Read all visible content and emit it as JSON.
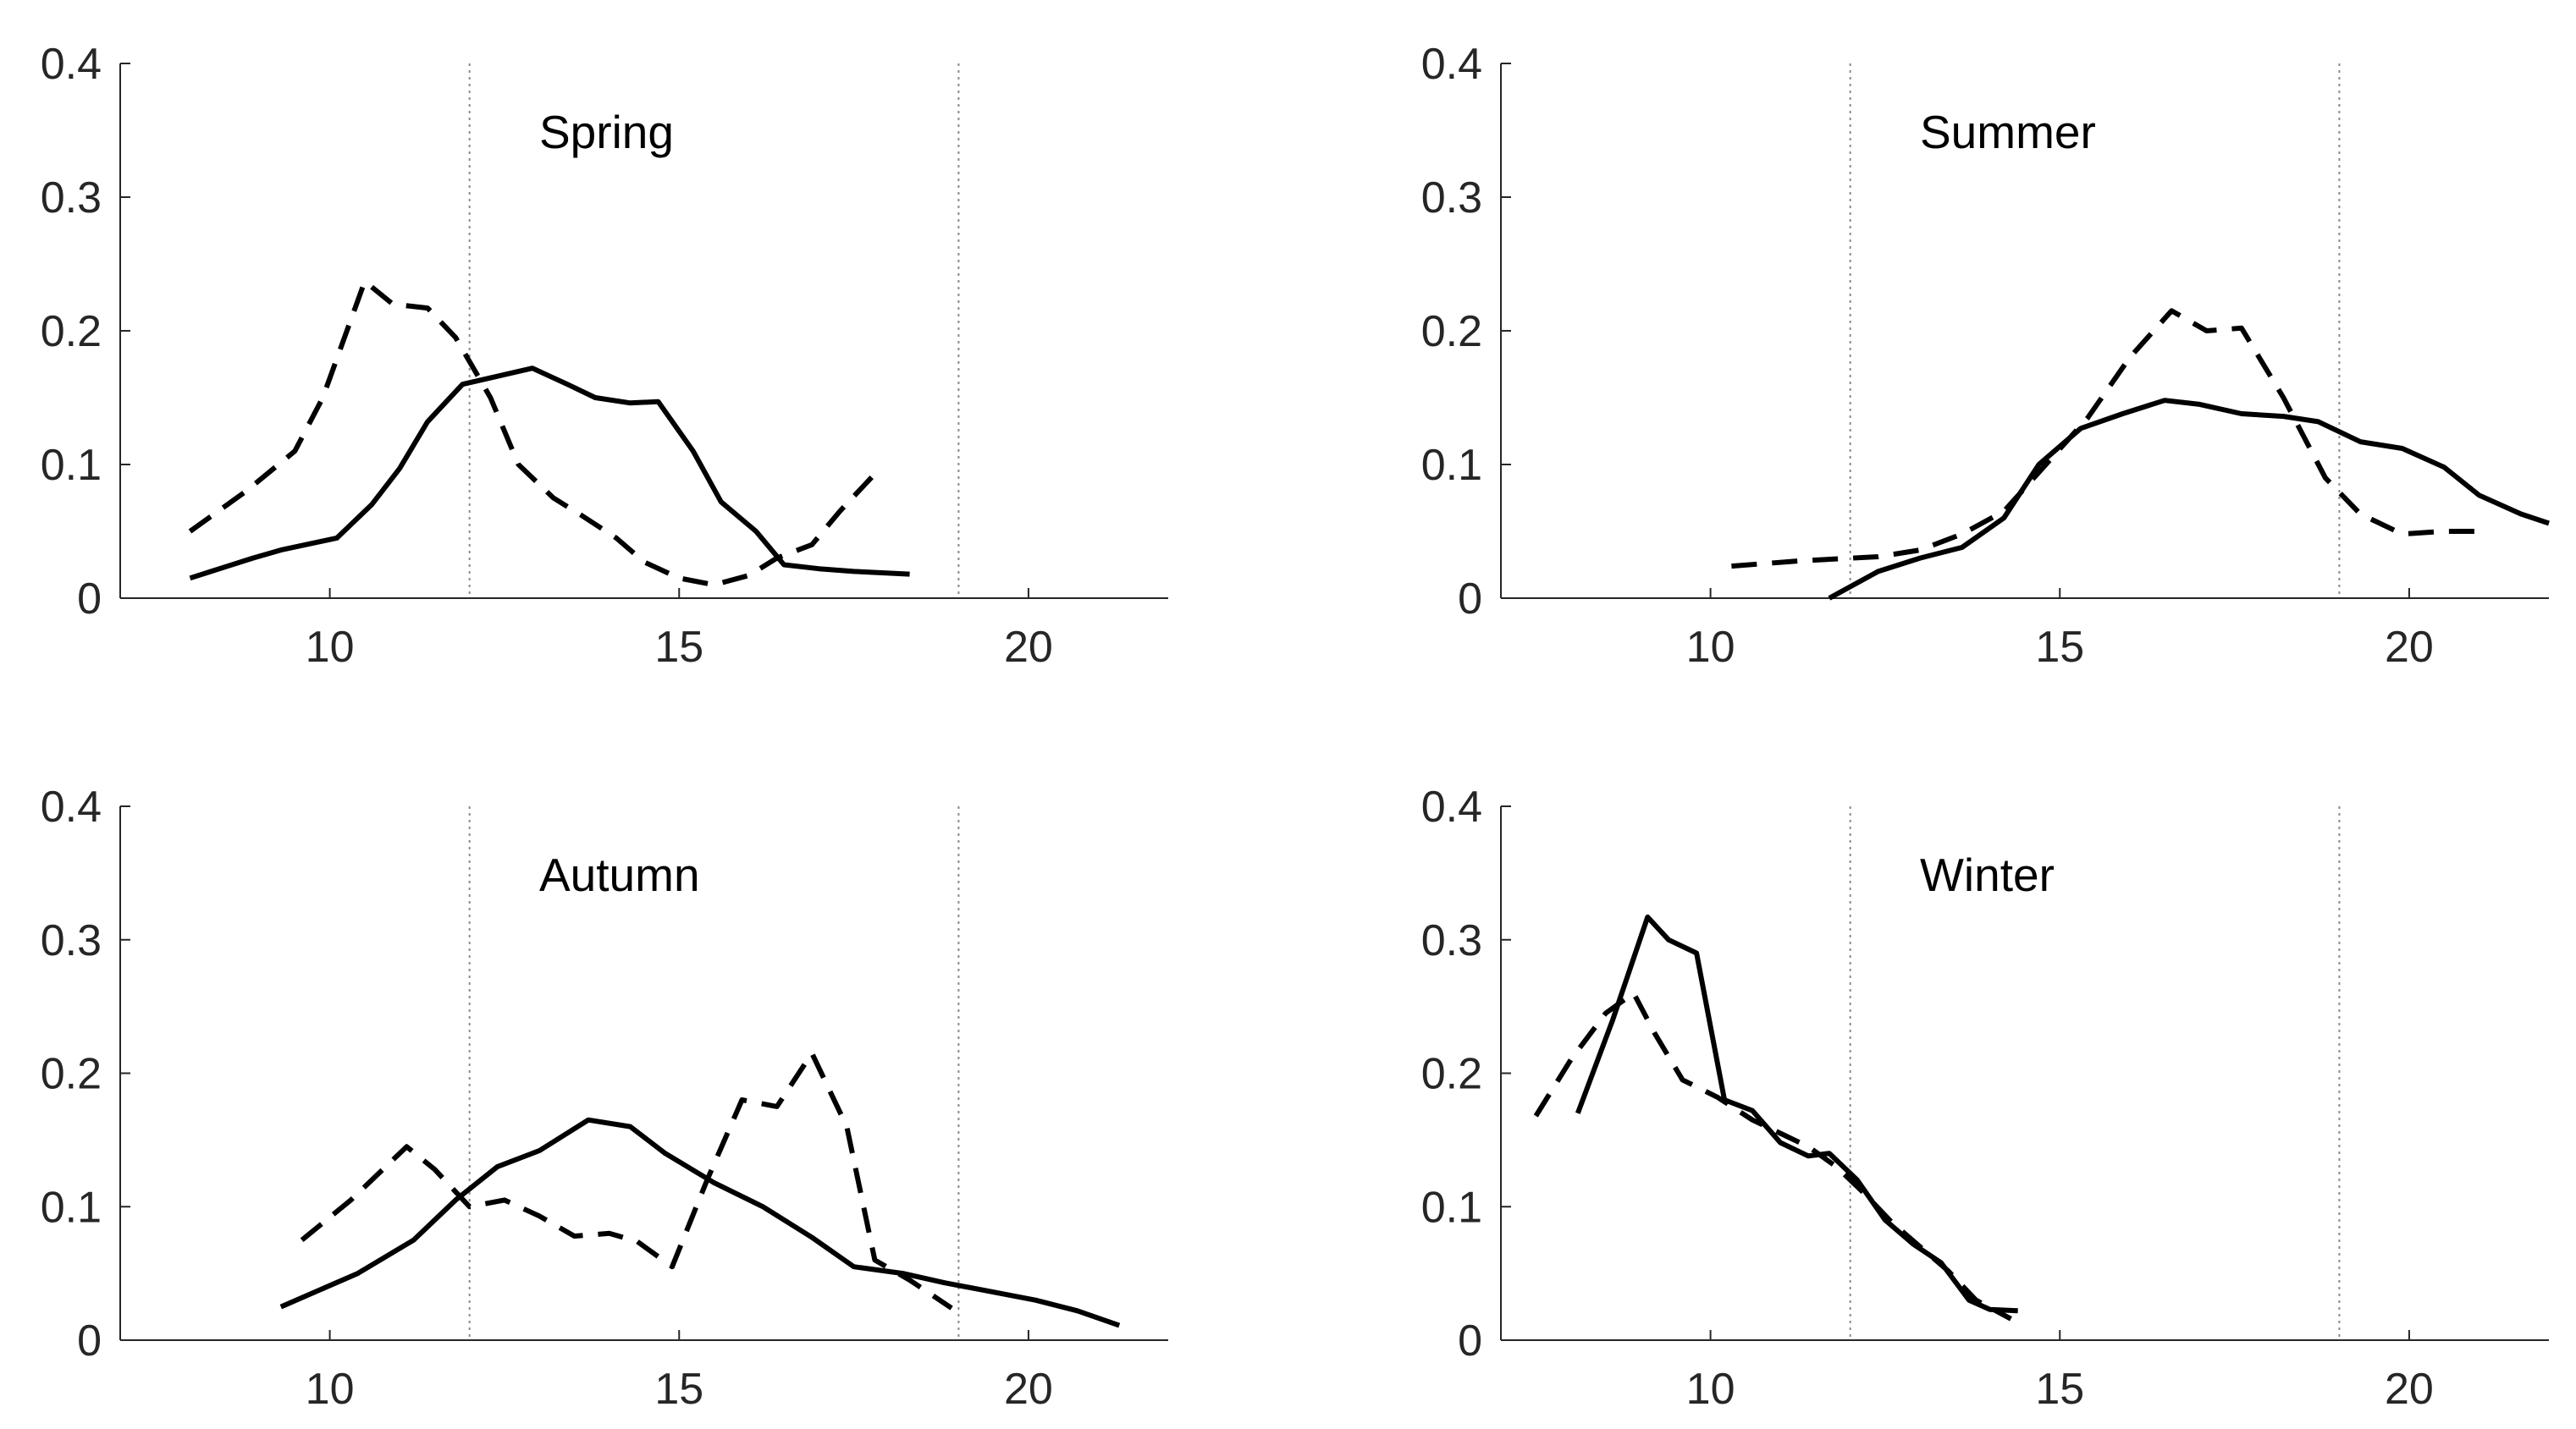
{
  "chart_data": [
    {
      "type": "line",
      "title": "Spring",
      "xlim": [
        7,
        22
      ],
      "ylim": [
        0,
        0.4
      ],
      "xticks": [
        10,
        15,
        20
      ],
      "yticks": [
        0,
        0.1,
        0.2,
        0.3,
        0.4
      ],
      "ytick_labels": [
        "0",
        "0.1",
        "0.2",
        "0.3",
        "0.4"
      ],
      "vlines": [
        12,
        19
      ],
      "series": [
        {
          "name": "solid",
          "style": "solid",
          "x": [
            8.0,
            8.9,
            9.3,
            10.1,
            10.6,
            11.0,
            11.4,
            11.9,
            12.4,
            12.9,
            13.4,
            13.8,
            14.3,
            14.7,
            15.2,
            15.6,
            16.1,
            16.5,
            17.0,
            17.5,
            18.3
          ],
          "y": [
            0.015,
            0.03,
            0.036,
            0.045,
            0.07,
            0.097,
            0.132,
            0.16,
            0.166,
            0.172,
            0.16,
            0.15,
            0.146,
            0.147,
            0.11,
            0.072,
            0.05,
            0.025,
            0.022,
            0.02,
            0.018
          ]
        },
        {
          "name": "dashed",
          "style": "dashed",
          "x": [
            8.0,
            8.8,
            9.5,
            9.9,
            10.5,
            10.9,
            11.4,
            11.8,
            12.3,
            12.7,
            13.2,
            13.6,
            14.1,
            14.5,
            15.0,
            15.5,
            16.0,
            16.4,
            16.9,
            17.3,
            17.8
          ],
          "y": [
            0.05,
            0.08,
            0.11,
            0.15,
            0.237,
            0.22,
            0.217,
            0.195,
            0.15,
            0.1,
            0.075,
            0.062,
            0.045,
            0.027,
            0.015,
            0.01,
            0.017,
            0.03,
            0.04,
            0.065,
            0.093
          ]
        }
      ]
    },
    {
      "type": "line",
      "title": "Summer",
      "xlim": [
        7,
        22
      ],
      "ylim": [
        0,
        0.4
      ],
      "xticks": [
        10,
        15,
        20
      ],
      "yticks": [
        0,
        0.1,
        0.2,
        0.3,
        0.4
      ],
      "ytick_labels": [
        "0",
        "0.1",
        "0.2",
        "0.3",
        "0.4"
      ],
      "vlines": [
        12,
        19
      ],
      "series": [
        {
          "name": "solid",
          "style": "solid",
          "x": [
            11.7,
            12.4,
            13.0,
            13.6,
            14.2,
            14.7,
            15.3,
            15.9,
            16.5,
            17.0,
            17.6,
            18.2,
            18.7,
            19.3,
            19.9,
            20.5,
            21.0,
            21.6,
            22.0
          ],
          "y": [
            0.0,
            0.02,
            0.03,
            0.038,
            0.06,
            0.1,
            0.127,
            0.138,
            0.148,
            0.145,
            0.138,
            0.136,
            0.132,
            0.117,
            0.112,
            0.098,
            0.077,
            0.063,
            0.056
          ]
        },
        {
          "name": "dashed",
          "style": "dashed",
          "x": [
            10.3,
            11.3,
            12.4,
            13.0,
            13.6,
            14.2,
            14.8,
            15.4,
            16.0,
            16.6,
            17.1,
            17.6,
            18.2,
            18.8,
            19.3,
            19.9,
            20.5,
            21.0
          ],
          "y": [
            0.024,
            0.028,
            0.031,
            0.036,
            0.048,
            0.065,
            0.1,
            0.135,
            0.18,
            0.215,
            0.2,
            0.202,
            0.15,
            0.09,
            0.063,
            0.048,
            0.05,
            0.05
          ]
        }
      ]
    },
    {
      "type": "line",
      "title": "Autumn",
      "xlim": [
        7,
        22
      ],
      "ylim": [
        0,
        0.4
      ],
      "xticks": [
        10,
        15,
        20
      ],
      "yticks": [
        0,
        0.1,
        0.2,
        0.3,
        0.4
      ],
      "ytick_labels": [
        "0",
        "0.1",
        "0.2",
        "0.3",
        "0.4"
      ],
      "vlines": [
        12,
        19
      ],
      "series": [
        {
          "name": "solid",
          "style": "solid",
          "x": [
            9.3,
            10.4,
            11.2,
            11.8,
            12.4,
            13.0,
            13.7,
            14.3,
            14.8,
            15.5,
            16.2,
            16.9,
            17.5,
            18.2,
            18.8,
            19.5,
            20.1,
            20.7,
            21.3
          ],
          "y": [
            0.025,
            0.05,
            0.075,
            0.105,
            0.13,
            0.142,
            0.165,
            0.16,
            0.14,
            0.118,
            0.1,
            0.077,
            0.055,
            0.05,
            0.043,
            0.036,
            0.03,
            0.022,
            0.011
          ]
        },
        {
          "name": "dashed",
          "style": "dashed",
          "x": [
            9.6,
            10.3,
            11.1,
            11.5,
            12.0,
            12.5,
            13.0,
            13.5,
            14.0,
            14.4,
            14.9,
            15.4,
            15.9,
            16.4,
            16.9,
            17.4,
            17.8,
            18.3,
            18.9
          ],
          "y": [
            0.075,
            0.105,
            0.145,
            0.128,
            0.1,
            0.105,
            0.093,
            0.078,
            0.08,
            0.074,
            0.055,
            0.12,
            0.18,
            0.175,
            0.215,
            0.16,
            0.06,
            0.045,
            0.024
          ]
        }
      ]
    },
    {
      "type": "line",
      "title": "Winter",
      "xlim": [
        7,
        22
      ],
      "ylim": [
        0,
        0.4
      ],
      "xticks": [
        10,
        15,
        20
      ],
      "yticks": [
        0,
        0.1,
        0.2,
        0.3,
        0.4
      ],
      "ytick_labels": [
        "0",
        "0.1",
        "0.2",
        "0.3",
        "0.4"
      ],
      "vlines": [
        12,
        19
      ],
      "series": [
        {
          "name": "solid",
          "style": "solid",
          "x": [
            8.1,
            8.6,
            9.1,
            9.4,
            9.8,
            10.2,
            10.6,
            11.0,
            11.4,
            11.7,
            12.1,
            12.5,
            12.9,
            13.3,
            13.7,
            14.0,
            14.4
          ],
          "y": [
            0.17,
            0.24,
            0.317,
            0.3,
            0.29,
            0.18,
            0.172,
            0.148,
            0.138,
            0.14,
            0.12,
            0.09,
            0.072,
            0.058,
            0.03,
            0.023,
            0.022
          ]
        },
        {
          "name": "dashed",
          "style": "dashed",
          "x": [
            7.5,
            8.0,
            8.5,
            8.9,
            9.2,
            9.6,
            10.1,
            10.6,
            11.0,
            11.4,
            11.8,
            12.2,
            12.6,
            13.0,
            13.4,
            13.8,
            14.3
          ],
          "y": [
            0.168,
            0.21,
            0.245,
            0.26,
            0.23,
            0.195,
            0.182,
            0.165,
            0.155,
            0.145,
            0.13,
            0.11,
            0.088,
            0.07,
            0.052,
            0.03,
            0.016
          ]
        }
      ]
    }
  ]
}
